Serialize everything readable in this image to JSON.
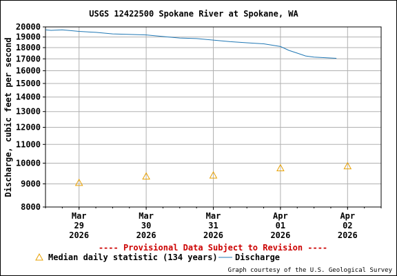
{
  "chart_data": {
    "type": "line",
    "title": "USGS 12422500 Spokane River at Spokane, WA",
    "ylabel": "Discharge, cubic feet per second",
    "xlabel": "",
    "yscale": "log",
    "ylim": [
      8000,
      20000
    ],
    "y_ticks": [
      8000,
      9000,
      10000,
      11000,
      12000,
      13000,
      14000,
      15000,
      16000,
      17000,
      18000,
      19000,
      20000
    ],
    "xlim": [
      "2026-03-28 12:00",
      "2026-04-02 12:00"
    ],
    "x_ticks": [
      {
        "t": "2026-03-29 00:00",
        "lines": [
          "Mar",
          "29",
          "2026"
        ]
      },
      {
        "t": "2026-03-30 00:00",
        "lines": [
          "Mar",
          "30",
          "2026"
        ]
      },
      {
        "t": "2026-03-31 00:00",
        "lines": [
          "Mar",
          "31",
          "2026"
        ]
      },
      {
        "t": "2026-04-01 00:00",
        "lines": [
          "Apr",
          "01",
          "2026"
        ]
      },
      {
        "t": "2026-04-02 00:00",
        "lines": [
          "Apr",
          "02",
          "2026"
        ]
      }
    ],
    "grid": true,
    "series": [
      {
        "name": "Discharge",
        "color": "#1f77b4",
        "points": [
          {
            "t": "2026-03-28 12:00",
            "v": 19700
          },
          {
            "t": "2026-03-28 14:00",
            "v": 19650
          },
          {
            "t": "2026-03-28 18:00",
            "v": 19700
          },
          {
            "t": "2026-03-29 00:00",
            "v": 19550
          },
          {
            "t": "2026-03-29 06:00",
            "v": 19450
          },
          {
            "t": "2026-03-29 12:00",
            "v": 19300
          },
          {
            "t": "2026-03-29 18:00",
            "v": 19250
          },
          {
            "t": "2026-03-30 00:00",
            "v": 19200
          },
          {
            "t": "2026-03-30 06:00",
            "v": 19050
          },
          {
            "t": "2026-03-30 12:00",
            "v": 18900
          },
          {
            "t": "2026-03-30 18:00",
            "v": 18850
          },
          {
            "t": "2026-03-31 00:00",
            "v": 18700
          },
          {
            "t": "2026-03-31 06:00",
            "v": 18550
          },
          {
            "t": "2026-03-31 12:00",
            "v": 18450
          },
          {
            "t": "2026-03-31 18:00",
            "v": 18350
          },
          {
            "t": "2026-04-01 00:00",
            "v": 18100
          },
          {
            "t": "2026-04-01 03:00",
            "v": 17750
          },
          {
            "t": "2026-04-01 06:00",
            "v": 17500
          },
          {
            "t": "2026-04-01 09:00",
            "v": 17250
          },
          {
            "t": "2026-04-01 12:00",
            "v": 17150
          },
          {
            "t": "2026-04-01 16:00",
            "v": 17100
          },
          {
            "t": "2026-04-01 20:00",
            "v": 17050
          }
        ]
      },
      {
        "name": "Median daily statistic (134 years)",
        "color": "#e8a000",
        "marker": "triangle",
        "points": [
          {
            "t": "2026-03-29 00:00",
            "v": 9050
          },
          {
            "t": "2026-03-30 00:00",
            "v": 9350
          },
          {
            "t": "2026-03-31 00:00",
            "v": 9400
          },
          {
            "t": "2026-04-01 00:00",
            "v": 9750
          },
          {
            "t": "2026-04-02 00:00",
            "v": 9850
          }
        ]
      }
    ],
    "annotations": {
      "provisional": "---- Provisional Data Subject to Revision ----",
      "provisional_color": "#cc0000",
      "credit": "Graph courtesy of the U.S. Geological Survey"
    },
    "legend": {
      "placement": "bottom",
      "entries": [
        {
          "label": "Median daily statistic (134 years)",
          "marker": "triangle",
          "color": "#e8a000"
        },
        {
          "label": "Discharge",
          "marker": "line",
          "color": "#1f77b4"
        }
      ]
    }
  }
}
